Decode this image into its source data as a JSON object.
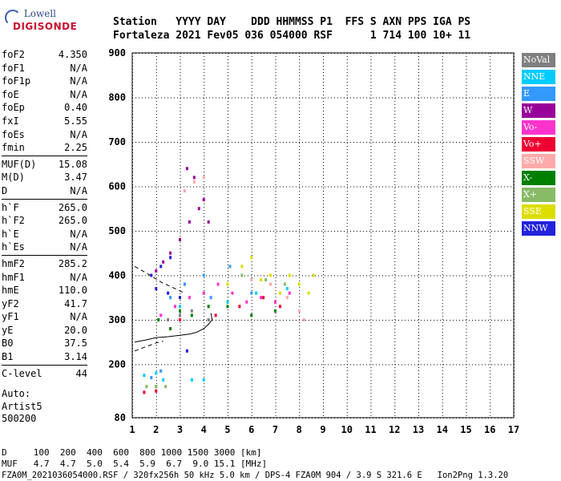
{
  "logo": {
    "brand": "Lowell",
    "product": "DIGISONDE"
  },
  "header": {
    "line1": "Station   YYYY DAY    DDD HHMMSS P1  FFS S AXN PPS IGA PS",
    "line2": "Fortaleza 2021 Fev05 036 054000 RSF      1 714 100 10+ 11"
  },
  "params": [
    [
      {
        "k": "foF2",
        "v": "4.350"
      },
      {
        "k": "foF1",
        "v": "N/A"
      },
      {
        "k": "foF1p",
        "v": "N/A"
      },
      {
        "k": "foE",
        "v": "N/A"
      },
      {
        "k": "foEp",
        "v": "0.40"
      },
      {
        "k": "fxI",
        "v": "5.55"
      },
      {
        "k": "foEs",
        "v": "N/A"
      },
      {
        "k": "fmin",
        "v": "2.25"
      }
    ],
    [
      {
        "k": "MUF(D)",
        "v": "15.08"
      },
      {
        "k": "M(D)",
        "v": "3.47"
      },
      {
        "k": "D",
        "v": "N/A"
      }
    ],
    [
      {
        "k": "h`F",
        "v": "265.0"
      },
      {
        "k": "h`F2",
        "v": "265.0"
      },
      {
        "k": "h`E",
        "v": "N/A"
      },
      {
        "k": "h`Es",
        "v": "N/A"
      }
    ],
    [
      {
        "k": "hmF2",
        "v": "285.2"
      },
      {
        "k": "hmF1",
        "v": "N/A"
      },
      {
        "k": "hmE",
        "v": "110.0"
      },
      {
        "k": "yF2",
        "v": "41.7"
      },
      {
        "k": "yF1",
        "v": "N/A"
      },
      {
        "k": "yE",
        "v": "20.0"
      },
      {
        "k": "B0",
        "v": "37.5"
      },
      {
        "k": "B1",
        "v": "3.14"
      }
    ],
    [
      {
        "k": "C-level",
        "v": "44"
      }
    ]
  ],
  "auto": [
    "Auto:",
    "Artist5",
    "500200"
  ],
  "legend": [
    {
      "label": "NoVal",
      "color": "#808080"
    },
    {
      "label": "NNE",
      "color": "#00ccff"
    },
    {
      "label": "E",
      "color": "#3399ff"
    },
    {
      "label": "W",
      "color": "#990099"
    },
    {
      "label": "Vo-",
      "color": "#ff33cc"
    },
    {
      "label": "Vo+",
      "color": "#ee0033"
    },
    {
      "label": "SSW",
      "color": "#ffaaaa"
    },
    {
      "label": "X-",
      "color": "#008000"
    },
    {
      "label": "X+",
      "color": "#88bb66"
    },
    {
      "label": "SSE",
      "color": "#dddd00"
    },
    {
      "label": "NNW",
      "color": "#2222dd"
    }
  ],
  "chart_data": {
    "type": "scatter",
    "title": "",
    "xlabel": "",
    "ylabel": "",
    "xlim": [
      1,
      17
    ],
    "ylim": [
      80,
      900
    ],
    "xticks": [
      1,
      2,
      3,
      4,
      5,
      6,
      7,
      8,
      9,
      10,
      11,
      12,
      13,
      14,
      15,
      16,
      17
    ],
    "yticks": [
      80,
      200,
      300,
      400,
      500,
      600,
      700,
      800,
      900
    ],
    "grid": true,
    "series": [
      {
        "name": "NoVal",
        "color": "#808080",
        "points": [
          [
            2.0,
            150
          ],
          [
            2.5,
            300
          ],
          [
            3.0,
            310
          ],
          [
            3.5,
            320
          ],
          [
            4.2,
            300
          ]
        ]
      },
      {
        "name": "NNE",
        "color": "#00ccff",
        "points": [
          [
            1.5,
            175
          ],
          [
            2.0,
            180
          ],
          [
            2.3,
            165
          ],
          [
            3.5,
            165
          ],
          [
            4.0,
            165
          ],
          [
            3.0,
            330
          ],
          [
            4.0,
            360
          ],
          [
            5.0,
            340
          ],
          [
            6.2,
            360
          ],
          [
            7.5,
            370
          ]
        ]
      },
      {
        "name": "E",
        "color": "#3399ff",
        "points": [
          [
            1.8,
            170
          ],
          [
            2.2,
            185
          ],
          [
            2.6,
            350
          ],
          [
            3.2,
            380
          ],
          [
            4.0,
            400
          ],
          [
            4.3,
            350
          ],
          [
            5.1,
            420
          ],
          [
            6.0,
            360
          ]
        ]
      },
      {
        "name": "W",
        "color": "#990099",
        "points": [
          [
            2.0,
            410
          ],
          [
            2.3,
            430
          ],
          [
            2.6,
            450
          ],
          [
            3.0,
            480
          ],
          [
            3.4,
            520
          ],
          [
            3.8,
            550
          ],
          [
            4.0,
            570
          ],
          [
            4.2,
            520
          ],
          [
            3.3,
            640
          ],
          [
            3.6,
            620
          ]
        ]
      },
      {
        "name": "Vo-",
        "color": "#ff33cc",
        "points": [
          [
            2.2,
            310
          ],
          [
            2.8,
            330
          ],
          [
            3.4,
            350
          ],
          [
            4.0,
            360
          ],
          [
            4.6,
            380
          ],
          [
            5.2,
            360
          ],
          [
            5.8,
            340
          ],
          [
            6.4,
            350
          ],
          [
            7.0,
            340
          ],
          [
            7.6,
            360
          ]
        ]
      },
      {
        "name": "Vo+",
        "color": "#ee0033",
        "points": [
          [
            1.5,
            137
          ],
          [
            2.0,
            140
          ],
          [
            3.0,
            300
          ],
          [
            4.5,
            310
          ],
          [
            5.5,
            330
          ],
          [
            6.5,
            350
          ],
          [
            7.2,
            330
          ]
        ]
      },
      {
        "name": "SSW",
        "color": "#ffaaaa",
        "points": [
          [
            3.2,
            590
          ],
          [
            3.6,
            610
          ],
          [
            4.0,
            620
          ],
          [
            6.0,
            390
          ],
          [
            6.8,
            380
          ],
          [
            7.5,
            350
          ],
          [
            8.0,
            320
          ],
          [
            8.2,
            300
          ]
        ]
      },
      {
        "name": "X-",
        "color": "#008000",
        "points": [
          [
            2.1,
            300
          ],
          [
            2.6,
            280
          ],
          [
            3.0,
            320
          ],
          [
            3.5,
            310
          ],
          [
            4.2,
            330
          ],
          [
            5.0,
            330
          ],
          [
            6.0,
            310
          ],
          [
            7.0,
            320
          ]
        ]
      },
      {
        "name": "X+",
        "color": "#88bb66",
        "points": [
          [
            1.6,
            150
          ],
          [
            2.0,
            150
          ],
          [
            2.4,
            150
          ],
          [
            5.6,
            400
          ],
          [
            6.6,
            390
          ],
          [
            7.4,
            380
          ]
        ]
      },
      {
        "name": "SSE",
        "color": "#dddd00",
        "points": [
          [
            5.0,
            380
          ],
          [
            5.6,
            420
          ],
          [
            6.0,
            440
          ],
          [
            6.4,
            390
          ],
          [
            6.8,
            400
          ],
          [
            7.2,
            360
          ],
          [
            7.6,
            400
          ],
          [
            8.0,
            380
          ],
          [
            8.4,
            360
          ],
          [
            8.6,
            400
          ]
        ]
      },
      {
        "name": "NNW",
        "color": "#2222dd",
        "points": [
          [
            1.8,
            400
          ],
          [
            2.2,
            420
          ],
          [
            2.6,
            440
          ],
          [
            2.0,
            370
          ],
          [
            2.5,
            360
          ],
          [
            3.0,
            350
          ],
          [
            3.3,
            230
          ]
        ]
      }
    ],
    "curves": [
      {
        "name": "profile",
        "style": "solid",
        "points": [
          [
            1.1,
            250
          ],
          [
            1.6,
            255
          ],
          [
            2.0,
            260
          ],
          [
            2.5,
            262
          ],
          [
            3.0,
            265
          ],
          [
            3.4,
            268
          ],
          [
            3.7,
            272
          ],
          [
            4.0,
            280
          ],
          [
            4.2,
            290
          ],
          [
            4.35,
            300
          ],
          [
            4.3,
            315
          ]
        ]
      },
      {
        "name": "profile-ext-low",
        "style": "dashed",
        "points": [
          [
            1.1,
            230
          ],
          [
            1.5,
            238
          ],
          [
            2.0,
            248
          ],
          [
            2.3,
            252
          ]
        ]
      },
      {
        "name": "profile-ext-high",
        "style": "dashed",
        "points": [
          [
            1.1,
            420
          ],
          [
            1.6,
            405
          ],
          [
            2.2,
            385
          ],
          [
            2.8,
            370
          ],
          [
            3.2,
            360
          ]
        ]
      }
    ]
  },
  "footer": {
    "d_label": "D     100  200  400  600  800 1000 1500 3000 [km]",
    "muf_label": "MUF   4.7  4.7  5.0  5.4  5.9  6.7  9.0 15.1 [MHz]",
    "file_info": "FZA0M_2021036054000.RSF / 320fx256h 50 kHz 5.0 km / DPS-4 FZA0M 904 / 3.9 S 321.6 E   Ion2Png 1.3.20"
  }
}
